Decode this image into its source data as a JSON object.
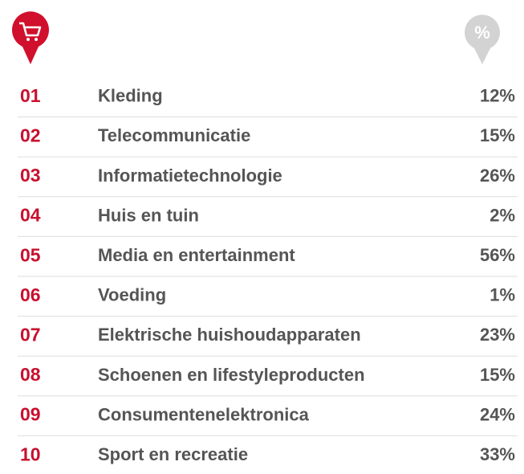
{
  "header": {
    "percent_icon": "%"
  },
  "table": {
    "rows": [
      [
        "01",
        "Kleding",
        "12%"
      ],
      [
        "02",
        "Telecommunicatie",
        "15%"
      ],
      [
        "03",
        "Informatietechnologie",
        "26%"
      ],
      [
        "04",
        "Huis en tuin",
        "2%"
      ],
      [
        "05",
        "Media en entertainment",
        "56%"
      ],
      [
        "06",
        "Voeding",
        "1%"
      ],
      [
        "07",
        "Elektrische huishoudapparaten",
        "23%"
      ],
      [
        "08",
        "Schoenen en lifestyleproducten",
        "15%"
      ],
      [
        "09",
        "Consumentenelektronica",
        "24%"
      ],
      [
        "10",
        "Sport en recreatie",
        "33%"
      ]
    ]
  }
}
